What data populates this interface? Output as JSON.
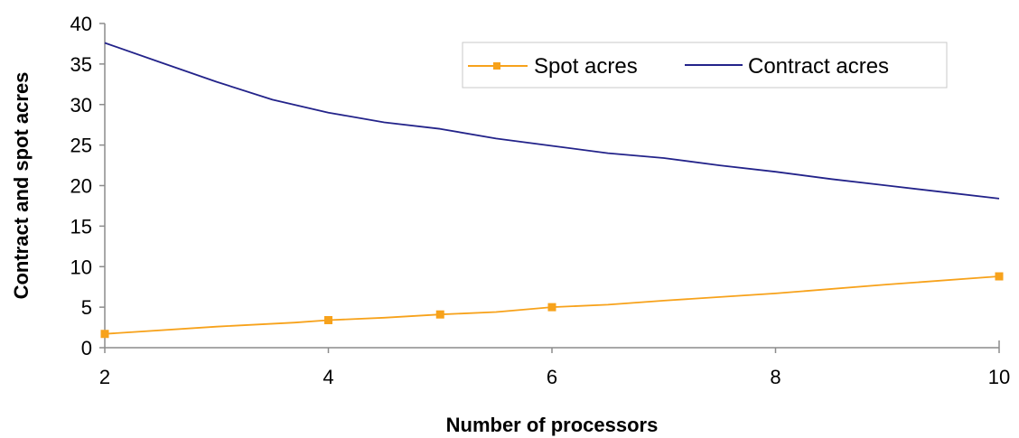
{
  "chart_data": {
    "type": "line",
    "xlabel": "Number of processors",
    "ylabel": "Contract and spot acres",
    "xlim": [
      2,
      10
    ],
    "ylim": [
      0,
      40
    ],
    "x_ticks": [
      2,
      4,
      6,
      8,
      10
    ],
    "y_ticks": [
      0,
      5,
      10,
      15,
      20,
      25,
      30,
      35,
      40
    ],
    "grid": false,
    "legend_position": "top-right",
    "series": [
      {
        "name": "Spot acres",
        "color": "#f7a21b",
        "marker": "square",
        "x": [
          2,
          3,
          3.7,
          4,
          4.5,
          5,
          5.5,
          6,
          6.5,
          7,
          8,
          9,
          10
        ],
        "y": [
          1.7,
          2.6,
          3.1,
          3.4,
          3.7,
          4.1,
          4.4,
          5.0,
          5.3,
          5.8,
          6.7,
          7.8,
          8.8
        ],
        "marker_x": [
          2,
          4,
          5,
          6,
          10
        ],
        "marker_y": [
          1.7,
          3.4,
          4.1,
          5.0,
          8.8
        ]
      },
      {
        "name": "Contract acres",
        "color": "#23238a",
        "marker": "none",
        "x": [
          2,
          2.5,
          3,
          3.5,
          4,
          4.5,
          5,
          5.5,
          6,
          6.5,
          7,
          7.5,
          8,
          8.5,
          9,
          9.5,
          10
        ],
        "y": [
          37.6,
          35.2,
          32.8,
          30.6,
          29.0,
          27.8,
          27.0,
          25.8,
          24.9,
          24.0,
          23.4,
          22.5,
          21.7,
          20.8,
          20.0,
          19.2,
          18.4
        ]
      }
    ]
  }
}
